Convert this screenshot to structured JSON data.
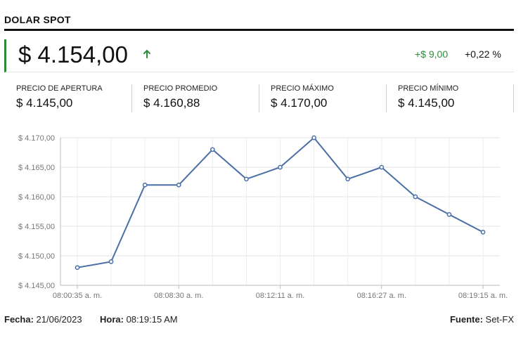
{
  "header": {
    "title": "DOLAR SPOT"
  },
  "price": {
    "value": "$ 4.154,00",
    "change_abs": "+$ 9,00",
    "change_pct": "+0,22 %",
    "up_color": "#2e8b3a"
  },
  "stats": [
    {
      "label": "PRECIO DE APERTURA",
      "value": "$ 4.145,00"
    },
    {
      "label": "PRECIO PROMEDIO",
      "value": "$ 4.160,88"
    },
    {
      "label": "PRECIO MÁXIMO",
      "value": "$ 4.170,00"
    },
    {
      "label": "PRECIO MÍNIMO",
      "value": "$ 4.145,00"
    }
  ],
  "chart_data": {
    "type": "line",
    "series": [
      {
        "values": [
          4148,
          4149,
          4162,
          4162,
          4168,
          4163,
          4165,
          4170,
          4163,
          4165,
          4160,
          4157,
          4154
        ]
      }
    ],
    "x_tick_labels": [
      "08:00:35 a. m.",
      "08:08:30 a. m.",
      "08:12:11 a. m.",
      "08:16:27 a. m.",
      "08:19:15 a. m."
    ],
    "y_tick_labels": [
      "$ 4.145,00",
      "$ 4.150,00",
      "$ 4.155,00",
      "$ 4.160,00",
      "$ 4.165,00",
      "$ 4.170,00"
    ],
    "ylim": [
      4145,
      4170
    ],
    "grid": true,
    "line_color": "#4a6fa5"
  },
  "footer": {
    "date_label": "Fecha:",
    "date_value": "21/06/2023",
    "time_label": "Hora:",
    "time_value": "08:19:15 AM",
    "source_label": "Fuente:",
    "source_value": "Set-FX"
  }
}
